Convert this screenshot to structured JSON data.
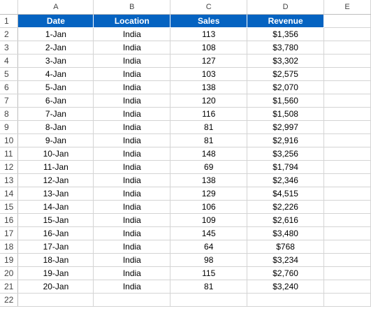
{
  "columns": [
    "A",
    "B",
    "C",
    "D",
    "E"
  ],
  "header": [
    "Date",
    "Location",
    "Sales",
    "Revenue"
  ],
  "rows": [
    [
      "1-Jan",
      "India",
      "113",
      "$1,356"
    ],
    [
      "2-Jan",
      "India",
      "108",
      "$3,780"
    ],
    [
      "3-Jan",
      "India",
      "127",
      "$3,302"
    ],
    [
      "4-Jan",
      "India",
      "103",
      "$2,575"
    ],
    [
      "5-Jan",
      "India",
      "138",
      "$2,070"
    ],
    [
      "6-Jan",
      "India",
      "120",
      "$1,560"
    ],
    [
      "7-Jan",
      "India",
      "116",
      "$1,508"
    ],
    [
      "8-Jan",
      "India",
      "81",
      "$2,997"
    ],
    [
      "9-Jan",
      "India",
      "81",
      "$2,916"
    ],
    [
      "10-Jan",
      "India",
      "148",
      "$3,256"
    ],
    [
      "11-Jan",
      "India",
      "69",
      "$1,794"
    ],
    [
      "12-Jan",
      "India",
      "138",
      "$2,346"
    ],
    [
      "13-Jan",
      "India",
      "129",
      "$4,515"
    ],
    [
      "14-Jan",
      "India",
      "106",
      "$2,226"
    ],
    [
      "15-Jan",
      "India",
      "109",
      "$2,616"
    ],
    [
      "16-Jan",
      "India",
      "145",
      "$3,480"
    ],
    [
      "17-Jan",
      "India",
      "64",
      "$768"
    ],
    [
      "18-Jan",
      "India",
      "98",
      "$3,234"
    ],
    [
      "19-Jan",
      "India",
      "115",
      "$2,760"
    ],
    [
      "20-Jan",
      "India",
      "81",
      "$3,240"
    ]
  ],
  "colors": {
    "header_fill": "#0563c1",
    "header_text": "#ffffff",
    "gridline": "#d4d4d4"
  }
}
